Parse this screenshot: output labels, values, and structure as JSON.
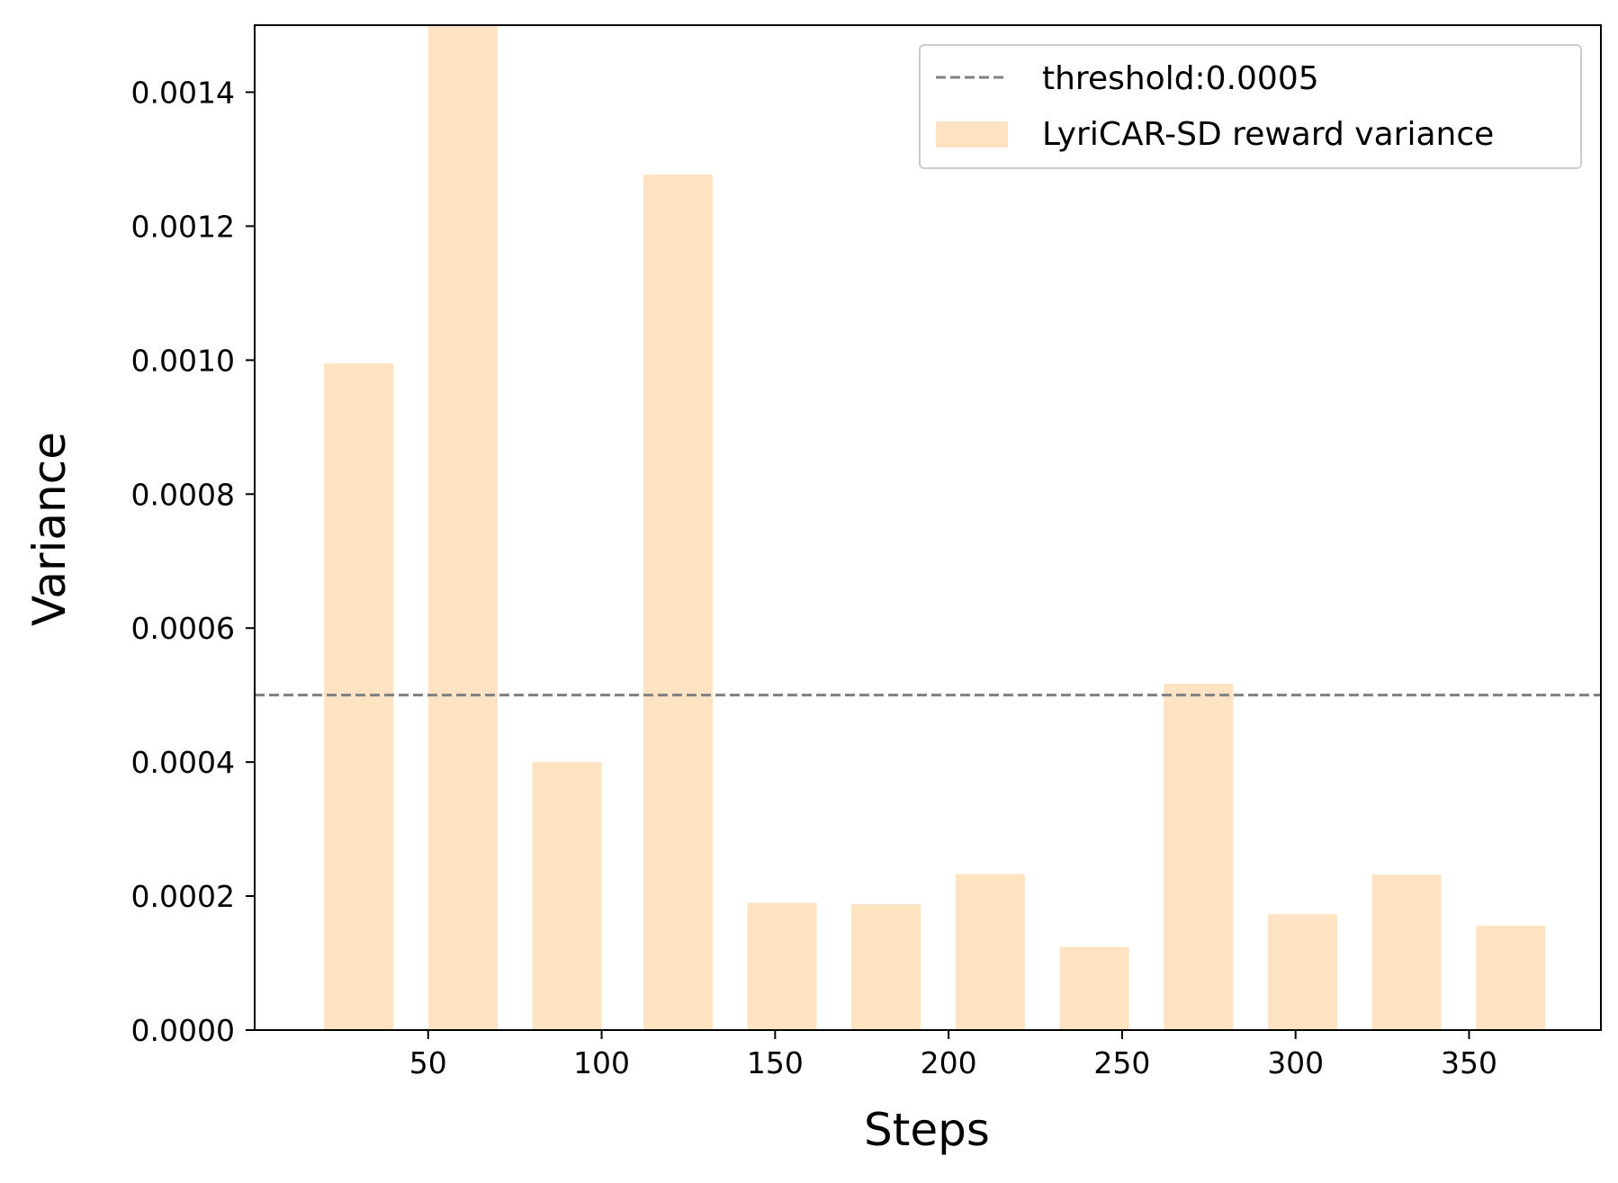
{
  "chart_data": {
    "type": "bar",
    "xlabel": "Steps",
    "ylabel": "Variance",
    "xlim": [
      0,
      388
    ],
    "ylim": [
      0,
      0.0015
    ],
    "grid": false,
    "legend_position": "top-right",
    "bar_color": "#fde3c2",
    "threshold_color": "#808080",
    "x_ticks": [
      50,
      100,
      150,
      200,
      250,
      300,
      350
    ],
    "x_tick_labels": [
      "50",
      "100",
      "150",
      "200",
      "250",
      "300",
      "350"
    ],
    "y_ticks": [
      0,
      0.0002,
      0.0004,
      0.0006,
      0.0008,
      0.001,
      0.0012,
      0.0014
    ],
    "y_tick_labels": [
      "0.0000",
      "0.0002",
      "0.0004",
      "0.0006",
      "0.0008",
      "0.0010",
      "0.0012",
      "0.0014"
    ],
    "threshold": {
      "value": 0.0005,
      "label": "threshold:0.0005"
    },
    "series": [
      {
        "name": "LyriCAR-SD reward variance",
        "bar_width": 20,
        "x": [
          30,
          60,
          90,
          122,
          152,
          182,
          212,
          242,
          272,
          302,
          332,
          362
        ],
        "values": [
          0.000995,
          0.0015,
          0.0004,
          0.001277,
          0.00019,
          0.000188,
          0.000233,
          0.000124,
          0.000517,
          0.000173,
          0.000232,
          0.000156
        ]
      }
    ]
  }
}
